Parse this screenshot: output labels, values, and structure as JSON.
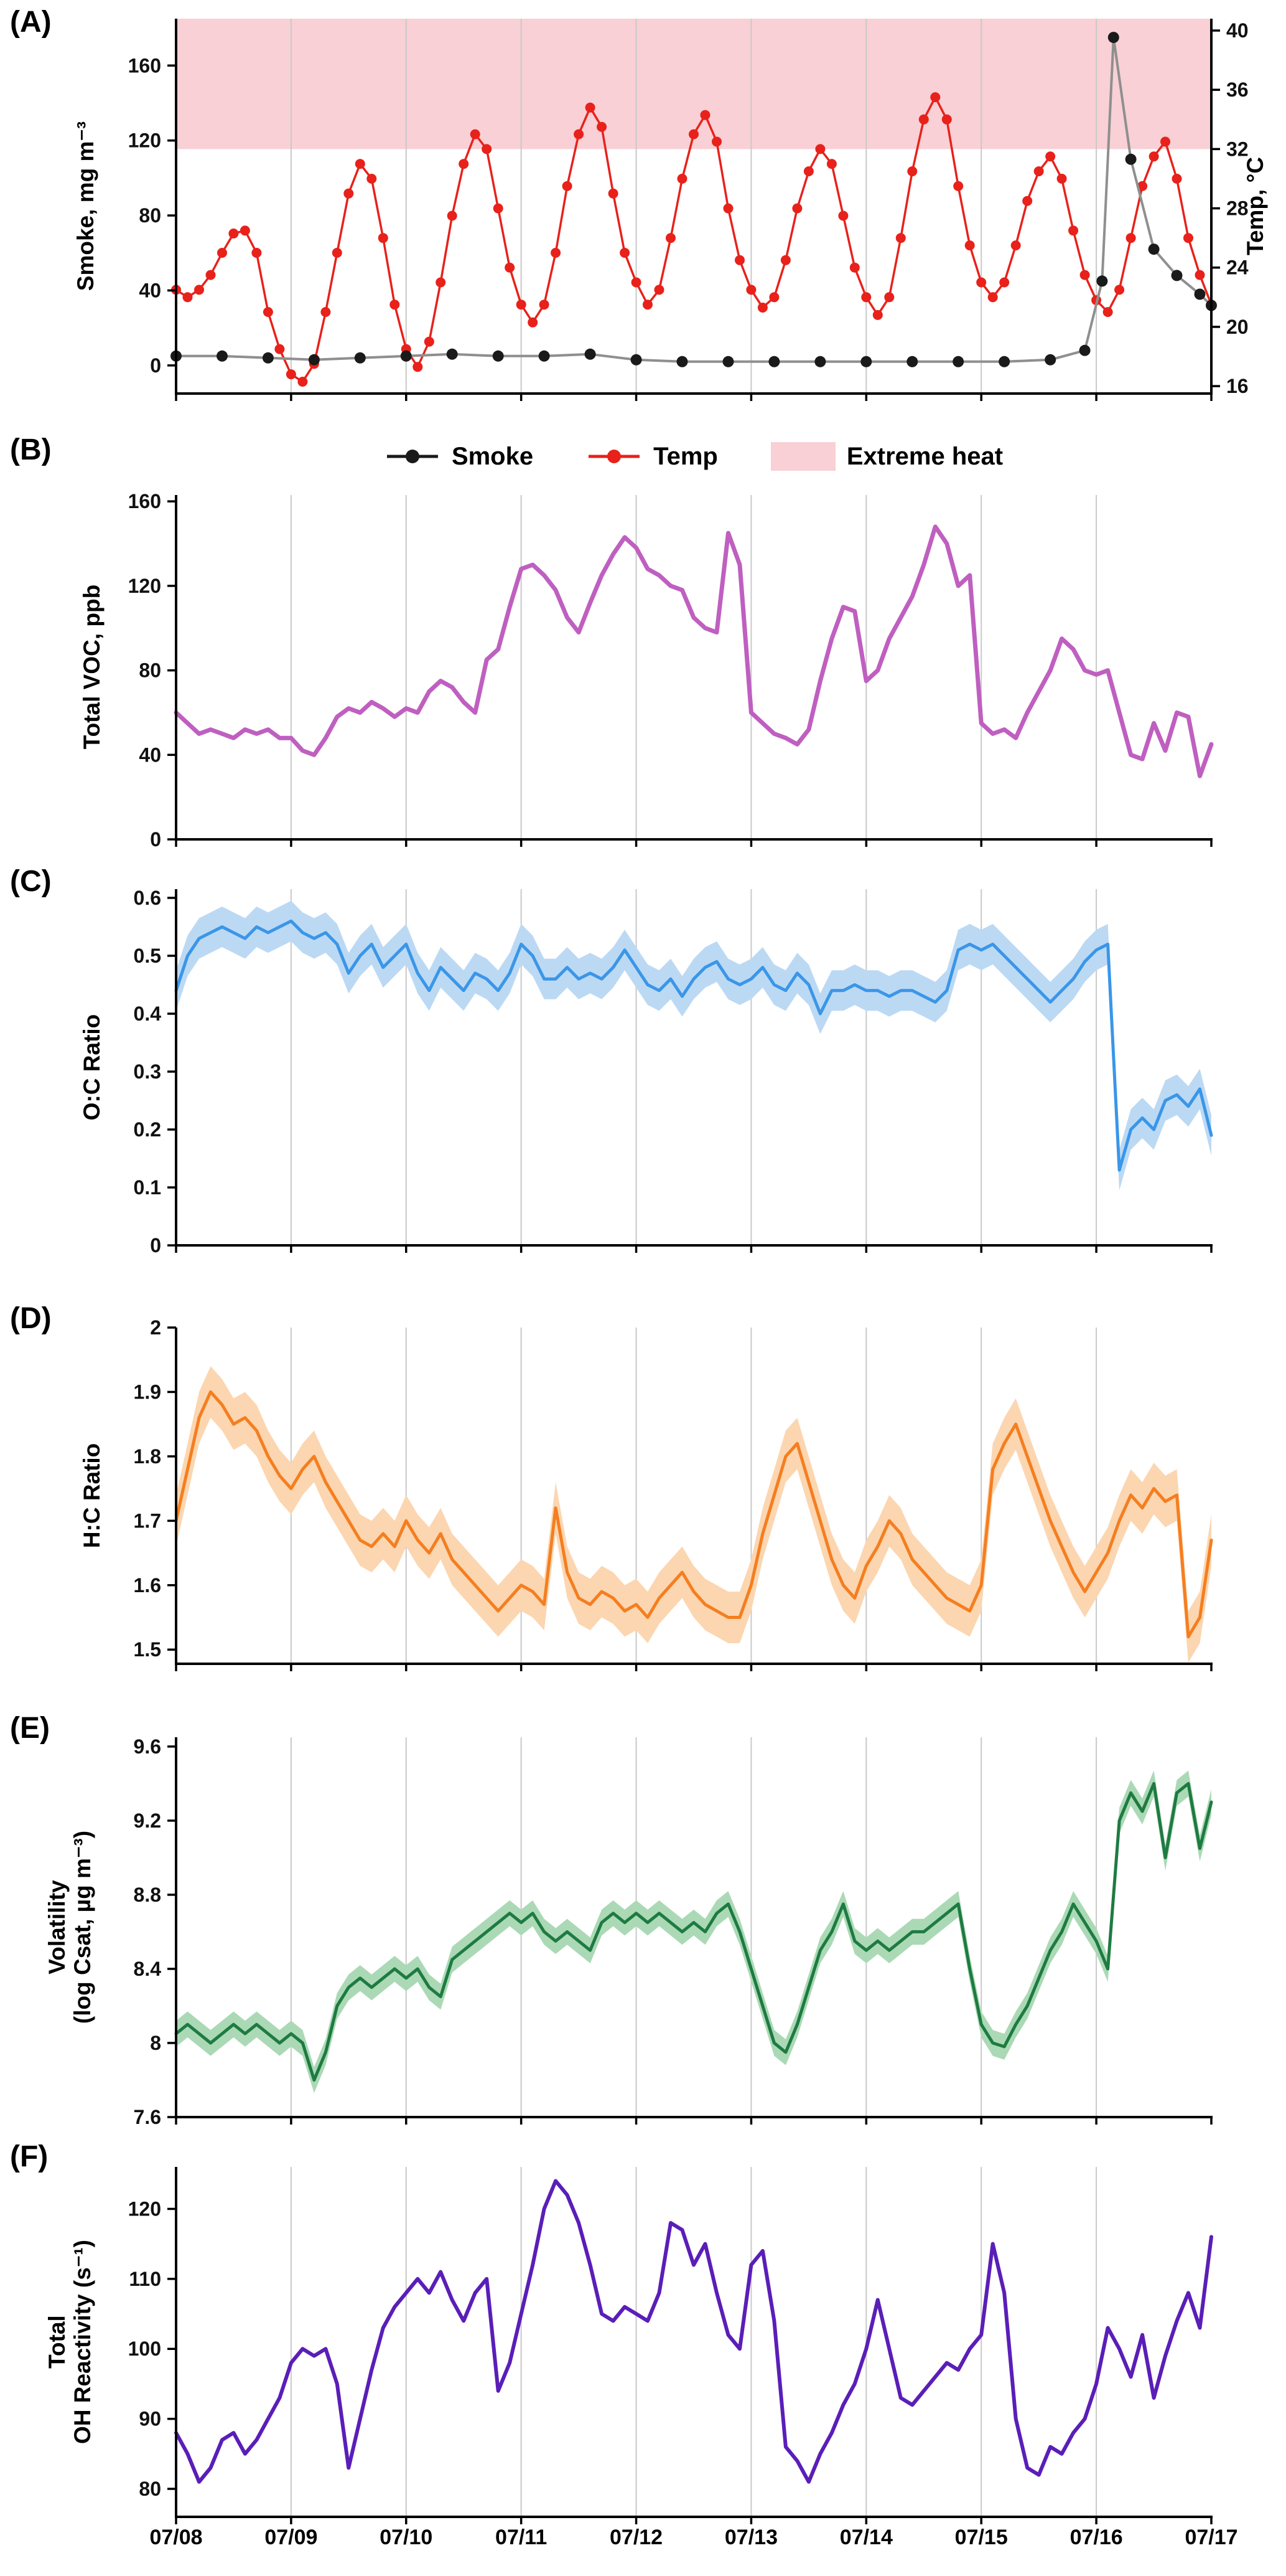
{
  "panels": {
    "A": {
      "letter": "(A)",
      "ylabel_left": "Smoke, mg m⁻³",
      "ylabel_right": "Temp, °C"
    },
    "B": {
      "letter": "(B)",
      "ylabel": "Total VOC, ppb"
    },
    "C": {
      "letter": "(C)",
      "ylabel": "O:C Ratio"
    },
    "D": {
      "letter": "(D)",
      "ylabel": "H:C Ratio"
    },
    "E": {
      "letter": "(E)",
      "ylabel_line1": "Volatility",
      "ylabel_line2": "(log Csat, µg m⁻³)"
    },
    "F": {
      "letter": "(F)",
      "ylabel_line1": "Total",
      "ylabel_line2": "OH Reactivity (s⁻¹)"
    }
  },
  "legend": {
    "items": [
      {
        "label": "Smoke",
        "color": "#1a1a1a",
        "type": "line-dot"
      },
      {
        "label": "Temp",
        "color": "#e8211b",
        "type": "line-dot"
      },
      {
        "label": "Extreme heat",
        "color": "#f8d0d5",
        "type": "box"
      }
    ]
  },
  "xaxis": {
    "labels": [
      "07/08",
      "07/09",
      "07/10",
      "07/11",
      "07/12",
      "07/13",
      "07/14",
      "07/15",
      "07/16",
      "07/17"
    ],
    "x_unit": "days since 07/08"
  },
  "chart_data": [
    {
      "panel": "A",
      "type": "line",
      "style": "scatter-line",
      "left_axis": {
        "label": "Smoke, mg m⁻³",
        "tick_values": [
          0,
          40,
          80,
          120,
          160
        ],
        "ylim": [
          -15,
          185
        ]
      },
      "right_axis": {
        "label": "Temp, °C",
        "tick_values": [
          16,
          20,
          24,
          28,
          32,
          36,
          40
        ],
        "ylim": [
          15.5,
          40.8
        ]
      },
      "band": {
        "label": "Extreme heat",
        "temp_from": 32,
        "temp_to": 40.8,
        "color": "#f8d0d5"
      },
      "series": [
        {
          "name": "Temp",
          "axis": "right",
          "marker_color": "#e8211b",
          "line_color": "#e8211b",
          "marker_r": 8,
          "line_width": 3.5,
          "x_start": 0,
          "x_step": 0.1,
          "values": [
            22.5,
            22,
            22.5,
            23.5,
            25,
            26.3,
            26.5,
            25,
            21,
            18.5,
            16.8,
            16.3,
            17.5,
            21,
            25,
            29,
            31,
            30,
            26,
            21.5,
            18.5,
            17.3,
            19,
            23,
            27.5,
            31,
            33,
            32,
            28,
            24,
            21.5,
            20.3,
            21.5,
            25,
            29.5,
            33,
            34.8,
            33.5,
            29,
            25,
            23,
            21.5,
            22.5,
            26,
            30,
            33,
            34.3,
            32.5,
            28,
            24.5,
            22.5,
            21.3,
            22,
            24.5,
            28,
            30.5,
            32,
            31,
            27.5,
            24,
            22,
            20.8,
            22,
            26,
            30.5,
            34,
            35.5,
            34,
            29.5,
            25.5,
            23,
            22,
            23,
            25.5,
            28.5,
            30.5,
            31.5,
            30,
            26.5,
            23.5,
            21.8,
            21,
            22.5,
            26,
            29.5,
            31.5,
            32.5,
            30,
            26,
            23.5,
            21.5
          ]
        },
        {
          "name": "Smoke",
          "axis": "left",
          "marker_color": "#1a1a1a",
          "line_color": "#8f8f8f",
          "marker_r": 9,
          "line_width": 4,
          "x": [
            0,
            0.4,
            0.8,
            1.2,
            1.6,
            2.0,
            2.4,
            2.8,
            3.2,
            3.6,
            4.0,
            4.4,
            4.8,
            5.2,
            5.6,
            6.0,
            6.4,
            6.8,
            7.2,
            7.6,
            7.9,
            8.05,
            8.15,
            8.3,
            8.5,
            8.7,
            8.9,
            9.0
          ],
          "values": [
            5,
            5,
            4,
            3,
            4,
            5,
            6,
            5,
            5,
            6,
            3,
            2,
            2,
            2,
            2,
            2,
            2,
            2,
            2,
            3,
            8,
            45,
            175,
            110,
            62,
            48,
            38,
            32
          ]
        }
      ]
    },
    {
      "panel": "B",
      "type": "line",
      "ylabel": "Total VOC, ppb",
      "ylim": [
        0,
        163
      ],
      "tick_values": [
        0,
        40,
        80,
        120,
        160
      ],
      "series": [
        {
          "name": "Total VOC",
          "color": "#bf5fc0",
          "line_width": 7,
          "x_start": 0,
          "x_step": 0.1,
          "values": [
            60,
            55,
            50,
            52,
            50,
            48,
            52,
            50,
            52,
            48,
            48,
            42,
            40,
            48,
            58,
            62,
            60,
            65,
            62,
            58,
            62,
            60,
            70,
            75,
            72,
            65,
            60,
            85,
            90,
            110,
            128,
            130,
            125,
            118,
            105,
            98,
            112,
            125,
            135,
            143,
            138,
            128,
            125,
            120,
            118,
            105,
            100,
            98,
            145,
            130,
            60,
            55,
            50,
            48,
            45,
            52,
            75,
            95,
            110,
            108,
            75,
            80,
            95,
            105,
            115,
            130,
            148,
            140,
            120,
            125,
            55,
            50,
            52,
            48,
            60,
            70,
            80,
            95,
            90,
            80,
            78,
            80,
            60,
            40,
            38,
            55,
            42,
            60,
            58,
            30,
            45
          ]
        }
      ]
    },
    {
      "panel": "C",
      "type": "line",
      "ylabel": "O:C Ratio",
      "ylim": [
        0,
        0.615
      ],
      "tick_values": [
        0,
        0.1,
        0.2,
        0.3,
        0.4,
        0.5,
        0.6
      ],
      "band_delta": 0.035,
      "band_color": "#bcd9f4",
      "series": [
        {
          "name": "O:C",
          "color": "#3a96e8",
          "line_width": 5,
          "x_start": 0,
          "x_step": 0.1,
          "values": [
            0.44,
            0.5,
            0.53,
            0.54,
            0.55,
            0.54,
            0.53,
            0.55,
            0.54,
            0.55,
            0.56,
            0.54,
            0.53,
            0.54,
            0.52,
            0.47,
            0.5,
            0.52,
            0.48,
            0.5,
            0.52,
            0.47,
            0.44,
            0.48,
            0.46,
            0.44,
            0.47,
            0.46,
            0.44,
            0.47,
            0.52,
            0.5,
            0.46,
            0.46,
            0.48,
            0.46,
            0.47,
            0.46,
            0.48,
            0.51,
            0.48,
            0.45,
            0.44,
            0.46,
            0.43,
            0.46,
            0.48,
            0.49,
            0.46,
            0.45,
            0.46,
            0.48,
            0.45,
            0.44,
            0.47,
            0.45,
            0.4,
            0.44,
            0.44,
            0.45,
            0.44,
            0.44,
            0.43,
            0.44,
            0.44,
            0.43,
            0.42,
            0.44,
            0.51,
            0.52,
            0.51,
            0.52,
            0.5,
            0.48,
            0.46,
            0.44,
            0.42,
            0.44,
            0.46,
            0.49,
            0.51,
            0.52,
            0.13,
            0.2,
            0.22,
            0.2,
            0.25,
            0.26,
            0.24,
            0.27,
            0.19
          ]
        }
      ]
    },
    {
      "panel": "D",
      "type": "line",
      "ylabel": "H:C Ratio",
      "ylim": [
        1.478,
        2.0
      ],
      "tick_values": [
        1.5,
        1.6,
        1.7,
        1.8,
        1.9,
        2
      ],
      "band_delta": 0.04,
      "band_color": "#fbd6b0",
      "series": [
        {
          "name": "H:C",
          "color": "#f57e20",
          "line_width": 5,
          "x_start": 0,
          "x_step": 0.1,
          "values": [
            1.7,
            1.78,
            1.86,
            1.9,
            1.88,
            1.85,
            1.86,
            1.84,
            1.8,
            1.77,
            1.75,
            1.78,
            1.8,
            1.76,
            1.73,
            1.7,
            1.67,
            1.66,
            1.68,
            1.66,
            1.7,
            1.67,
            1.65,
            1.68,
            1.64,
            1.62,
            1.6,
            1.58,
            1.56,
            1.58,
            1.6,
            1.59,
            1.57,
            1.72,
            1.62,
            1.58,
            1.57,
            1.59,
            1.58,
            1.56,
            1.57,
            1.55,
            1.58,
            1.6,
            1.62,
            1.59,
            1.57,
            1.56,
            1.55,
            1.55,
            1.6,
            1.68,
            1.74,
            1.8,
            1.82,
            1.76,
            1.7,
            1.64,
            1.6,
            1.58,
            1.63,
            1.66,
            1.7,
            1.68,
            1.64,
            1.62,
            1.6,
            1.58,
            1.57,
            1.56,
            1.6,
            1.78,
            1.82,
            1.85,
            1.8,
            1.75,
            1.7,
            1.66,
            1.62,
            1.59,
            1.62,
            1.65,
            1.7,
            1.74,
            1.72,
            1.75,
            1.73,
            1.74,
            1.52,
            1.55,
            1.67
          ]
        }
      ]
    },
    {
      "panel": "E",
      "type": "line",
      "ylabel": "Volatility (log Csat, µg m⁻³)",
      "ylim": [
        7.6,
        9.65
      ],
      "tick_values": [
        7.6,
        8,
        8.4,
        8.8,
        9.2,
        9.6
      ],
      "band_delta": 0.07,
      "band_color": "#abd9b5",
      "series": [
        {
          "name": "Volatility",
          "color": "#1e7b42",
          "line_width": 5,
          "x_start": 0,
          "x_step": 0.1,
          "values": [
            8.05,
            8.1,
            8.05,
            8.0,
            8.05,
            8.1,
            8.05,
            8.1,
            8.05,
            8.0,
            8.05,
            8.0,
            7.8,
            7.95,
            8.2,
            8.3,
            8.35,
            8.3,
            8.35,
            8.4,
            8.35,
            8.4,
            8.3,
            8.25,
            8.45,
            8.5,
            8.55,
            8.6,
            8.65,
            8.7,
            8.65,
            8.7,
            8.6,
            8.55,
            8.6,
            8.55,
            8.5,
            8.65,
            8.7,
            8.65,
            8.7,
            8.65,
            8.7,
            8.65,
            8.6,
            8.65,
            8.6,
            8.7,
            8.75,
            8.6,
            8.4,
            8.2,
            8.0,
            7.95,
            8.1,
            8.3,
            8.5,
            8.6,
            8.75,
            8.55,
            8.5,
            8.55,
            8.5,
            8.55,
            8.6,
            8.6,
            8.65,
            8.7,
            8.75,
            8.4,
            8.1,
            8.0,
            7.98,
            8.1,
            8.2,
            8.35,
            8.5,
            8.6,
            8.75,
            8.65,
            8.55,
            8.4,
            9.2,
            9.35,
            9.25,
            9.4,
            9.0,
            9.35,
            9.4,
            9.05,
            9.3
          ]
        }
      ]
    },
    {
      "panel": "F",
      "type": "line",
      "ylabel": "Total OH Reactivity (s⁻¹)",
      "ylim": [
        76,
        126
      ],
      "tick_values": [
        80,
        90,
        100,
        110,
        120
      ],
      "series": [
        {
          "name": "Total OH Reactivity",
          "color": "#5a1eb8",
          "line_width": 6,
          "x_start": 0,
          "x_step": 0.1,
          "values": [
            88,
            85,
            81,
            83,
            87,
            88,
            85,
            87,
            90,
            93,
            98,
            100,
            99,
            100,
            95,
            83,
            90,
            97,
            103,
            106,
            108,
            110,
            108,
            111,
            107,
            104,
            108,
            110,
            94,
            98,
            105,
            112,
            120,
            124,
            122,
            118,
            112,
            105,
            104,
            106,
            105,
            104,
            108,
            118,
            117,
            112,
            115,
            108,
            102,
            100,
            112,
            114,
            104,
            86,
            84,
            81,
            85,
            88,
            92,
            95,
            100,
            107,
            100,
            93,
            92,
            94,
            96,
            98,
            97,
            100,
            102,
            115,
            108,
            90,
            83,
            82,
            86,
            85,
            88,
            90,
            95,
            103,
            100,
            96,
            102,
            93,
            99,
            104,
            108,
            103,
            116
          ]
        }
      ]
    }
  ]
}
